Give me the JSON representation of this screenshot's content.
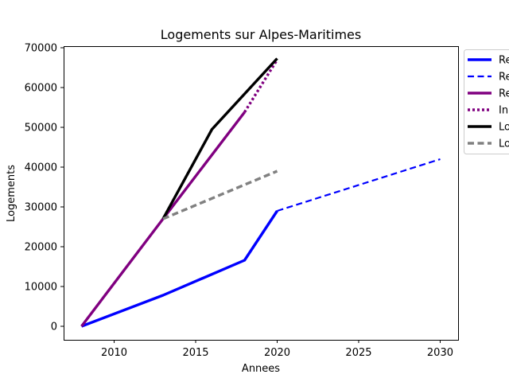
{
  "chart_data": {
    "type": "line",
    "title": "Logements sur Alpes-Maritimes",
    "xlabel": "Annees",
    "ylabel": "Logements",
    "xlim": [
      2006.9,
      2031.1
    ],
    "ylim": [
      -3400,
      70400
    ],
    "x_ticks": [
      2010,
      2015,
      2020,
      2025,
      2030
    ],
    "y_ticks": [
      0,
      10000,
      20000,
      30000,
      40000,
      50000,
      60000,
      70000
    ],
    "grid": false,
    "legend_placement": "outside upper-right",
    "series": [
      {
        "name": "Re",
        "color": "#0000ff",
        "style": "solid",
        "points": [
          [
            2008,
            0
          ],
          [
            2013,
            7800
          ],
          [
            2018,
            16600
          ],
          [
            2020,
            29000
          ]
        ]
      },
      {
        "name": "Re",
        "color": "#0000ff",
        "style": "dashed",
        "points": [
          [
            2020,
            29000
          ],
          [
            2030,
            42000
          ]
        ]
      },
      {
        "name": "Re",
        "color": "#800080",
        "style": "solid",
        "points": [
          [
            2008,
            0
          ],
          [
            2013,
            27000
          ],
          [
            2018,
            53800
          ]
        ]
      },
      {
        "name": "In",
        "color": "#800080",
        "style": "dotted",
        "points": [
          [
            2018,
            53800
          ],
          [
            2020,
            67000
          ]
        ]
      },
      {
        "name": "Lo",
        "color": "#000000",
        "style": "solid",
        "points": [
          [
            2013,
            27000
          ],
          [
            2016,
            49500
          ],
          [
            2020,
            67300
          ]
        ]
      },
      {
        "name": "Lo",
        "color": "#808080",
        "style": "dashed",
        "points": [
          [
            2013,
            27000
          ],
          [
            2020,
            39000
          ]
        ]
      }
    ]
  }
}
